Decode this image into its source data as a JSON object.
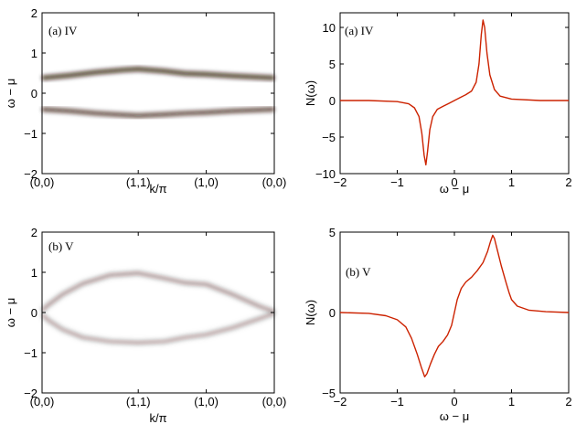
{
  "colors": {
    "band": "#2a1410",
    "dos_line": "#cc2200",
    "axis": "#000000"
  },
  "chart_data": [
    {
      "id": "a-left",
      "type": "heatmap",
      "panel_label": "(a) IV",
      "xlabel": "k/π",
      "ylabel": "ω − μ",
      "x_tick_labels": [
        "(0,0)",
        "(1,1)",
        "(1,0)",
        "(0,0)"
      ],
      "x_path": [
        0,
        1.414,
        2.414,
        3.414
      ],
      "ylim": [
        -2,
        2
      ],
      "y_ticks": [
        "2",
        "1",
        "0",
        "−1",
        "−2"
      ],
      "y_tick_values": [
        2,
        1,
        0,
        -1,
        -2
      ],
      "bands": [
        {
          "x": [
            0,
            0.4,
            0.8,
            1.2,
            1.414,
            1.8,
            2.1,
            2.414,
            2.8,
            3.414
          ],
          "y": [
            0.38,
            0.44,
            0.52,
            0.58,
            0.6,
            0.55,
            0.49,
            0.47,
            0.43,
            0.38
          ],
          "intensity": 0.95
        },
        {
          "x": [
            0,
            0.4,
            0.8,
            1.2,
            1.414,
            1.8,
            2.1,
            2.414,
            2.8,
            3.414
          ],
          "y": [
            -0.4,
            -0.44,
            -0.5,
            -0.54,
            -0.56,
            -0.53,
            -0.5,
            -0.48,
            -0.44,
            -0.4
          ],
          "intensity": 0.8
        }
      ]
    },
    {
      "id": "a-right",
      "type": "line",
      "panel_label": "(a) IV",
      "xlabel": "ω − μ",
      "ylabel": "N(ω)",
      "xlim": [
        -2,
        2
      ],
      "ylim": [
        -10,
        12
      ],
      "x_ticks": [
        "−2",
        "−1",
        "0",
        "1",
        "2"
      ],
      "x_tick_values": [
        -2,
        -1,
        0,
        1,
        2
      ],
      "y_ticks": [
        "10",
        "5",
        "0",
        "−5",
        "−10"
      ],
      "y_tick_values": [
        10,
        5,
        0,
        -5,
        -10
      ],
      "series": [
        {
          "x": [
            -2.0,
            -1.5,
            -1.0,
            -0.8,
            -0.7,
            -0.62,
            -0.57,
            -0.53,
            -0.5,
            -0.47,
            -0.43,
            -0.38,
            -0.3,
            -0.2,
            -0.1,
            0.0,
            0.1,
            0.2,
            0.3,
            0.38,
            0.43,
            0.47,
            0.5,
            0.53,
            0.57,
            0.62,
            0.7,
            0.8,
            1.0,
            1.5,
            2.0
          ],
          "y": [
            0.0,
            0.0,
            -0.15,
            -0.45,
            -1.0,
            -2.2,
            -4.5,
            -7.5,
            -8.8,
            -7.0,
            -4.0,
            -2.2,
            -1.2,
            -0.8,
            -0.4,
            0.0,
            0.4,
            0.8,
            1.3,
            2.5,
            5.0,
            9.0,
            11.0,
            10.0,
            6.5,
            3.5,
            1.5,
            0.6,
            0.2,
            0.0,
            0.0
          ]
        }
      ]
    },
    {
      "id": "b-left",
      "type": "heatmap",
      "panel_label": "(b) V",
      "xlabel": "k/π",
      "ylabel": "ω − μ",
      "x_tick_labels": [
        "(0,0)",
        "(1,1)",
        "(1,0)",
        "(0,0)"
      ],
      "x_path": [
        0,
        1.414,
        2.414,
        3.414
      ],
      "ylim": [
        -2,
        2
      ],
      "y_ticks": [
        "2",
        "1",
        "0",
        "−1",
        "−2"
      ],
      "y_tick_values": [
        2,
        1,
        0,
        -1,
        -2
      ],
      "bands": [
        {
          "x": [
            0,
            0.1,
            0.3,
            0.6,
            1.0,
            1.414,
            1.8,
            2.1,
            2.414,
            2.8,
            3.2,
            3.35,
            3.414
          ],
          "y": [
            0.05,
            0.2,
            0.45,
            0.72,
            0.93,
            0.98,
            0.85,
            0.74,
            0.7,
            0.45,
            0.15,
            0.06,
            0.03
          ],
          "intensity": 0.45
        },
        {
          "x": [
            0,
            0.1,
            0.3,
            0.6,
            1.0,
            1.414,
            1.8,
            2.1,
            2.414,
            2.8,
            3.2,
            3.35,
            3.414
          ],
          "y": [
            -0.05,
            -0.2,
            -0.42,
            -0.62,
            -0.72,
            -0.75,
            -0.72,
            -0.62,
            -0.55,
            -0.38,
            -0.15,
            -0.06,
            -0.03
          ],
          "intensity": 0.4
        }
      ]
    },
    {
      "id": "b-right",
      "type": "line",
      "panel_label": "(b) V",
      "xlabel": "ω − μ",
      "ylabel": "N(ω)",
      "xlim": [
        -2,
        2
      ],
      "ylim": [
        -5,
        5
      ],
      "x_ticks": [
        "−2",
        "−1",
        "0",
        "1",
        "2"
      ],
      "x_tick_values": [
        -2,
        -1,
        0,
        1,
        2
      ],
      "y_ticks": [
        "5",
        "0",
        "−5"
      ],
      "y_tick_values": [
        5,
        0,
        -5
      ],
      "series": [
        {
          "x": [
            -2.0,
            -1.5,
            -1.2,
            -1.0,
            -0.85,
            -0.75,
            -0.65,
            -0.58,
            -0.52,
            -0.48,
            -0.42,
            -0.35,
            -0.28,
            -0.2,
            -0.12,
            -0.05,
            0.0,
            0.05,
            0.12,
            0.2,
            0.3,
            0.4,
            0.5,
            0.58,
            0.63,
            0.67,
            0.7,
            0.75,
            0.82,
            0.9,
            0.96,
            1.0,
            1.1,
            1.3,
            1.6,
            2.0
          ],
          "y": [
            0.0,
            -0.05,
            -0.2,
            -0.45,
            -0.9,
            -1.6,
            -2.6,
            -3.4,
            -4.0,
            -3.8,
            -3.2,
            -2.6,
            -2.1,
            -1.8,
            -1.4,
            -0.8,
            0.0,
            0.8,
            1.5,
            1.9,
            2.2,
            2.6,
            3.1,
            3.8,
            4.4,
            4.8,
            4.6,
            3.9,
            2.9,
            1.9,
            1.2,
            0.8,
            0.4,
            0.15,
            0.05,
            0.0
          ]
        }
      ]
    }
  ]
}
